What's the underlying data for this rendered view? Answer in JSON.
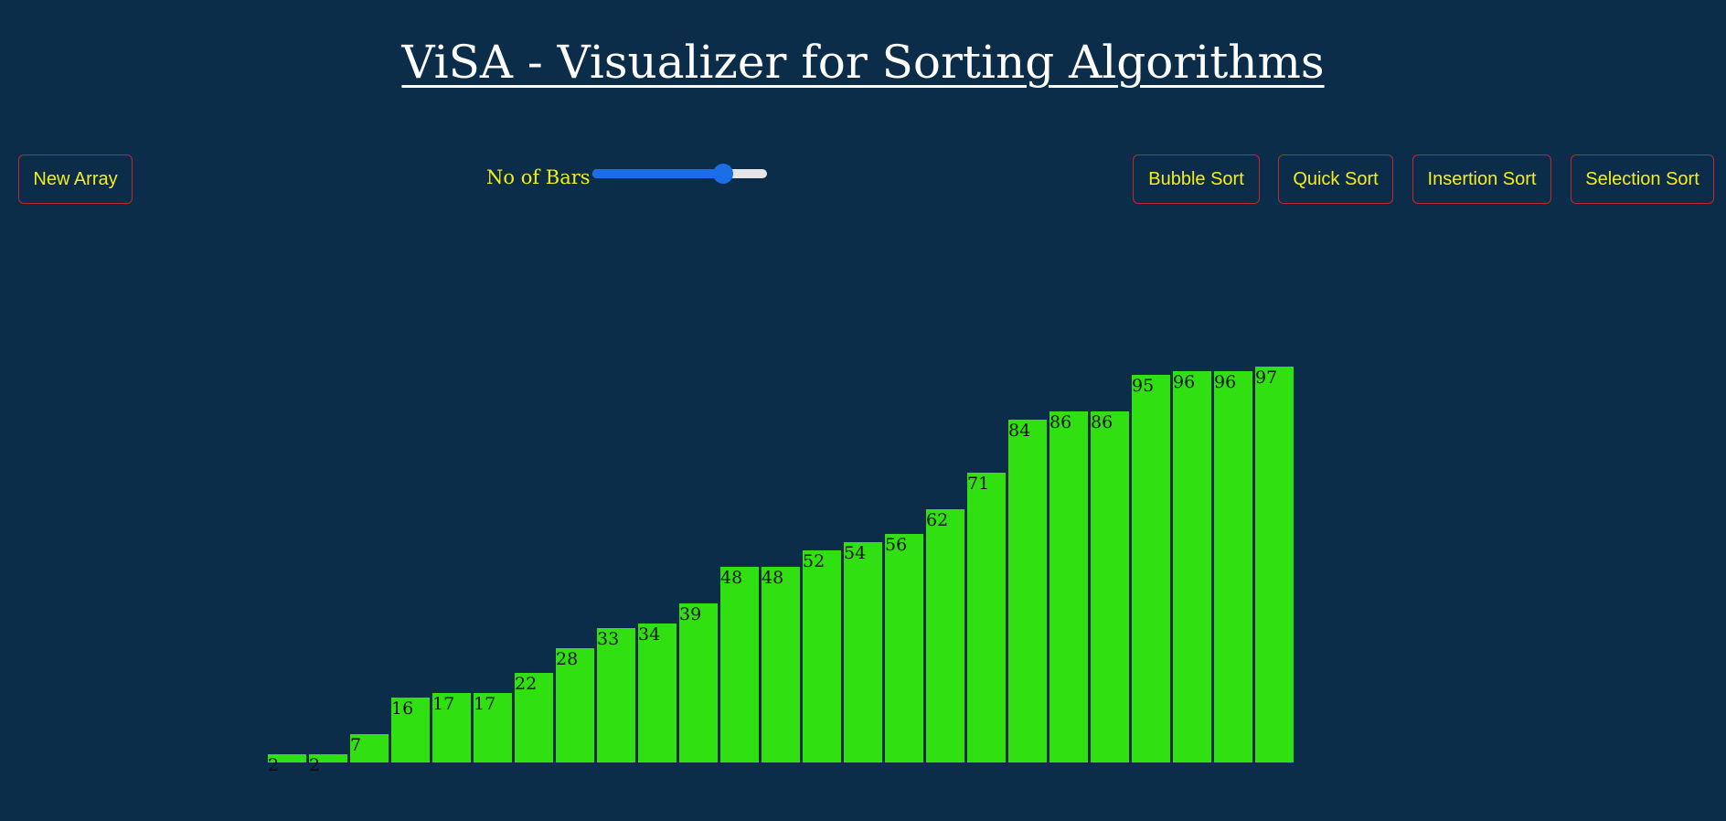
{
  "header": {
    "title": "ViSA - Visualizer for Sorting Algorithms"
  },
  "controls": {
    "new_array_label": "New Array",
    "bars_label": "No of Bars",
    "bars_slider_level": 0.78,
    "algorithms": {
      "bubble": "Bubble Sort",
      "quick": "Quick Sort",
      "insertion": "Insertion Sort",
      "selection": "Selection Sort"
    }
  },
  "colors": {
    "background": "#0b2d4a",
    "bar": "#31e010",
    "button_border": "#c3262e",
    "button_text": "#f5ee1c",
    "slider_accent": "#1a6ee8"
  },
  "chart_data": {
    "type": "bar",
    "values": [
      2,
      2,
      7,
      16,
      17,
      17,
      22,
      28,
      33,
      34,
      39,
      48,
      48,
      52,
      54,
      56,
      62,
      71,
      84,
      86,
      86,
      95,
      96,
      96,
      97
    ],
    "ylim": [
      0,
      100
    ],
    "grid": false
  }
}
